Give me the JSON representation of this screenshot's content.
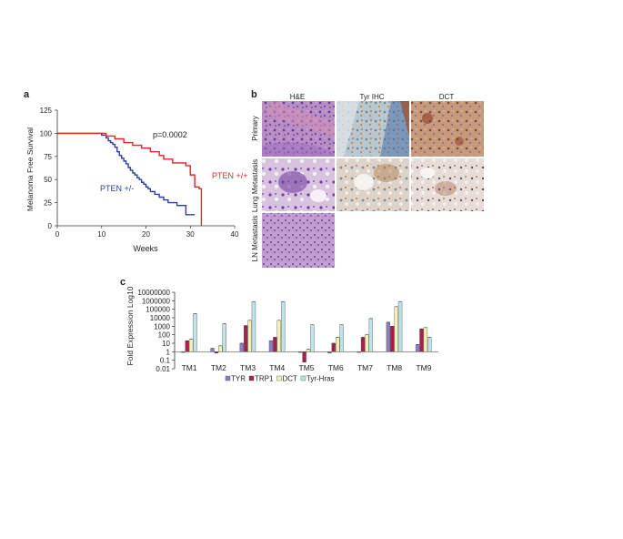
{
  "panel_a": {
    "letter": "a",
    "pvalue": "p=0.0002",
    "colors": {
      "pten_het": "#2a3f9d",
      "pten_wt": "#e0262a"
    },
    "chart_data": {
      "type": "line",
      "step": true,
      "xlabel": "Weeks",
      "ylabel": "Melanoma Free Survival",
      "xlim": [
        0,
        40
      ],
      "ylim": [
        0,
        125
      ],
      "xticks": [
        "0",
        "10",
        "20",
        "30",
        "40"
      ],
      "yticks": [
        "0",
        "25",
        "50",
        "75",
        "100",
        "125"
      ],
      "series": [
        {
          "name": "PTEN +/-",
          "color": "#2a3f9d",
          "x": [
            0,
            10,
            11,
            11.5,
            12,
            12.5,
            13,
            13.5,
            14,
            14.5,
            15,
            15.5,
            16,
            16.5,
            17,
            17.5,
            18,
            18.5,
            19,
            19.5,
            20,
            20.5,
            21,
            22,
            23,
            24,
            25,
            27,
            29,
            31
          ],
          "y": [
            100,
            98,
            95,
            92,
            90,
            88,
            85,
            80,
            76,
            73,
            70,
            67,
            63,
            60,
            57,
            55,
            52,
            50,
            47,
            45,
            42,
            40,
            37,
            34,
            31,
            28,
            25,
            22,
            12,
            12
          ]
        },
        {
          "name": "PTEN +/+",
          "color": "#e0262a",
          "x": [
            0,
            11,
            13,
            15,
            17,
            19,
            21,
            23,
            24,
            26,
            29,
            30,
            31,
            32,
            32.5
          ],
          "y": [
            100,
            97,
            94,
            90,
            87,
            84,
            80,
            76,
            72,
            68,
            65,
            55,
            42,
            40,
            0
          ]
        }
      ]
    }
  },
  "panel_b": {
    "letter": "b",
    "col_headers": [
      "H&E",
      "Tyr IHC",
      "DCT"
    ],
    "row_labels": [
      "Primary",
      "Lung Metastasis",
      "LN Metastasis"
    ]
  },
  "panel_c": {
    "letter": "c",
    "chart_data": {
      "type": "bar",
      "log_scale": true,
      "ylabel": "Fold Expression Log10",
      "ylim": [
        0.01,
        10000000
      ],
      "yticks": [
        "0.01",
        "0.1",
        "1",
        "10",
        "100",
        "1000",
        "10000",
        "100000",
        "1000000",
        "10000000"
      ],
      "categories": [
        "TM1",
        "TM2",
        "TM3",
        "TM4",
        "TM5",
        "TM6",
        "TM7",
        "TM8",
        "TM9"
      ],
      "series": [
        {
          "name": "TYR",
          "color": "#8b7fc0",
          "values": [
            1,
            2.5,
            10,
            20,
            1,
            0.7,
            1,
            3000,
            7
          ]
        },
        {
          "name": "TRP1",
          "color": "#a3214a",
          "values": [
            20,
            0.7,
            1200,
            50,
            0.06,
            10,
            50,
            1000,
            500
          ]
        },
        {
          "name": "DCT",
          "color": "#f3efb5",
          "values": [
            30,
            5,
            5000,
            5000,
            2,
            50,
            100,
            200000,
            700
          ]
        },
        {
          "name": "Tyr-Hras",
          "color": "#bfe2ec",
          "values": [
            30000,
            2000,
            800000,
            800000,
            1500,
            1500,
            8000,
            800000,
            50
          ]
        }
      ]
    }
  }
}
